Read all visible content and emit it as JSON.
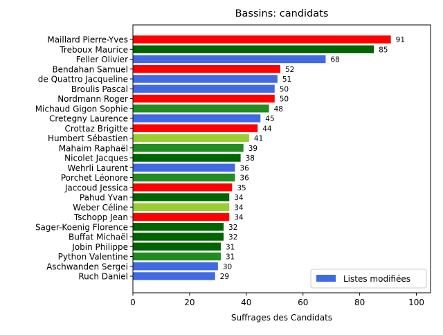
{
  "chart_data": {
    "type": "bar",
    "orientation": "horizontal",
    "title": "Bassins: candidats",
    "xlabel": "Suffrages des Candidats",
    "ylabel": "",
    "xlim": [
      0,
      105
    ],
    "xticks": [
      0,
      20,
      40,
      60,
      80,
      100
    ],
    "grid": false,
    "legend": {
      "position": "lower-right",
      "label": "Listes modifiées",
      "color": "#4169e1"
    },
    "categories": [
      "Maillard Pierre-Yves",
      "Treboux Maurice",
      "Feller Olivier",
      "Bendahan Samuel",
      "de Quattro Jacqueline",
      "Broulis Pascal",
      "Nordmann Roger",
      "Michaud Gigon Sophie",
      "Cretegny Laurence",
      "Crottaz Brigitte",
      "Humbert Sébastien",
      "Mahaim Raphaël",
      "Nicolet Jacques",
      "Wehrli Laurent",
      "Porchet Léonore",
      "Jaccoud Jessica",
      "Pahud Yvan",
      "Weber Céline",
      "Tschopp Jean",
      "Sager-Koenig Florence",
      "Buffat Michaël",
      "Jobin Philippe",
      "Python Valentine",
      "Aschwanden Sergei",
      "Ruch Daniel"
    ],
    "values": [
      91,
      85,
      68,
      52,
      51,
      50,
      50,
      48,
      45,
      44,
      41,
      39,
      38,
      36,
      36,
      35,
      34,
      34,
      34,
      32,
      32,
      31,
      31,
      30,
      29
    ],
    "colors": [
      "#ff0000",
      "#006400",
      "#4169e1",
      "#ff0000",
      "#4169e1",
      "#4169e1",
      "#ff0000",
      "#228b22",
      "#4169e1",
      "#ff0000",
      "#9acd32",
      "#228b22",
      "#006400",
      "#4169e1",
      "#228b22",
      "#ff0000",
      "#006400",
      "#9acd32",
      "#ff0000",
      "#006400",
      "#006400",
      "#006400",
      "#228b22",
      "#4169e1",
      "#4169e1"
    ]
  }
}
